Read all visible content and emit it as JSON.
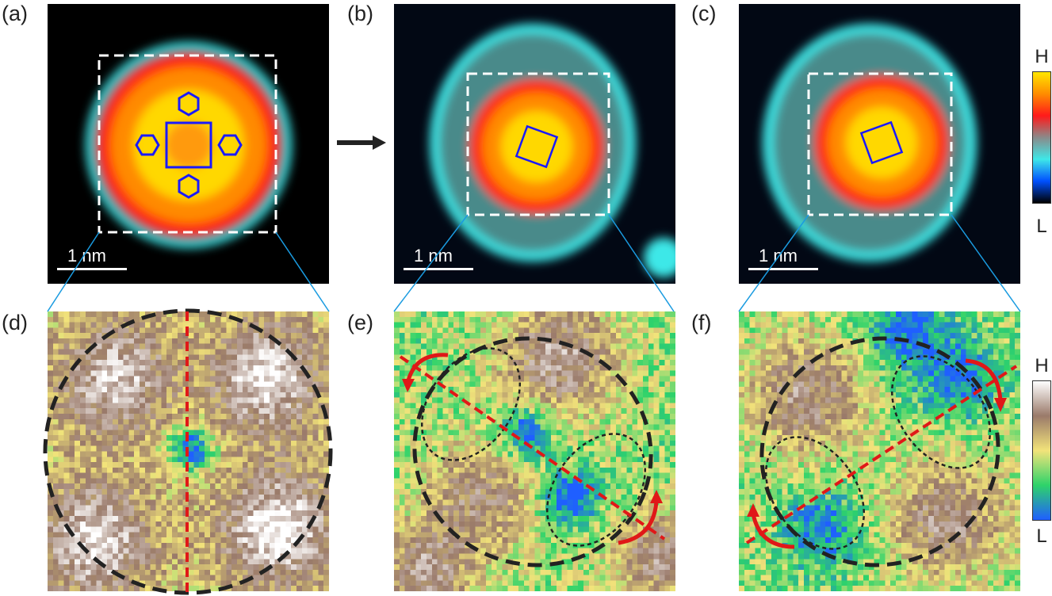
{
  "panels": {
    "a": "(a)",
    "b": "(b)",
    "c": "(c)",
    "d": "(d)",
    "e": "(e)",
    "f": "(f)"
  },
  "scale_bar": "1 nm",
  "colorbar_top": {
    "high": "H",
    "low": "L",
    "colors": [
      "#ffe600",
      "#ff8c00",
      "#ff1a1a",
      "#8a8a8a",
      "#3ee8e8",
      "#0050ff",
      "#000000"
    ]
  },
  "colorbar_bottom": {
    "high": "H",
    "low": "L",
    "colors": [
      "#ffffff",
      "#9a7a6a",
      "#f2e37a",
      "#2ed36a",
      "#1f5fff"
    ]
  },
  "accent_colors": {
    "connector": "#1a9be0",
    "axis": "#e01818",
    "molecule": "#1a1aff"
  }
}
